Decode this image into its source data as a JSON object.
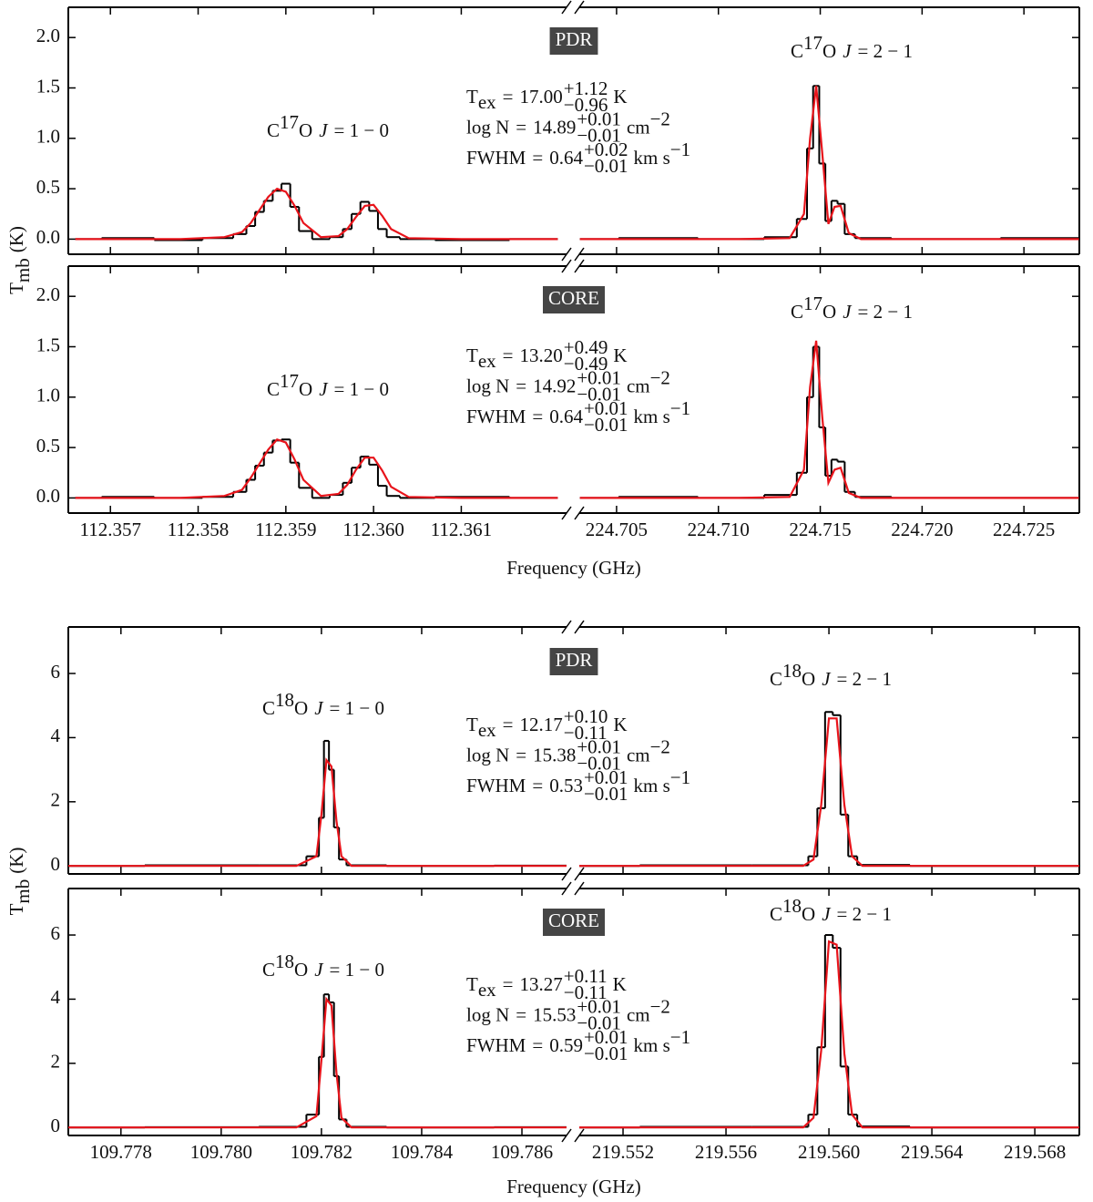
{
  "chart_data": [
    {
      "type": "line",
      "ylabel": {
        "text": "T",
        "sub": "mb",
        "unit": "(K)"
      },
      "xlabel": "Frequency (GHz)",
      "ylim": [
        -0.15,
        2.3
      ],
      "yticks": [
        {
          "value": 0,
          "label": "0.0"
        },
        0.5,
        {
          "value": 1,
          "label": "1.0"
        },
        1.5,
        {
          "value": 2,
          "label": "2.0"
        }
      ],
      "axes": [
        {
          "xlim": [
            112.35652,
            112.3622
          ],
          "xticks": [
            112.357,
            112.358,
            112.359,
            {
              "value": 112.36,
              "label": "112.360"
            },
            112.361
          ],
          "x": [
            112.3566,
            112.3572,
            112.3578,
            112.3583,
            112.3585,
            112.3586,
            112.3587,
            112.3588,
            112.3589,
            112.359,
            112.3591,
            112.3592,
            112.3594,
            112.3596,
            112.3597,
            112.3598,
            112.3599,
            112.36,
            112.3601,
            112.3602,
            112.3604,
            112.361,
            112.3621
          ]
        },
        {
          "xlim": [
            224.70317,
            224.72772
          ],
          "xticks": [
            224.705,
            {
              "value": 224.71,
              "label": "224.710"
            },
            224.715,
            {
              "value": 224.72,
              "label": "224.720"
            },
            224.725
          ],
          "x": [
            224.7032,
            224.707,
            224.711,
            224.7135,
            224.7142,
            224.7145,
            224.7148,
            224.7151,
            224.7154,
            224.7157,
            224.716,
            224.7164,
            224.717,
            224.72,
            224.7277
          ]
        }
      ],
      "panels": [
        {
          "label": "PDR",
          "fit": [
            {
              "name": "T",
              "sub": "ex",
              "eq": "=",
              "value": "17.00",
              "plus": "+1.12",
              "minus": "−0.96",
              "unit": "K"
            },
            {
              "name": "log N",
              "eq": "=",
              "value": "14.89",
              "plus": "+0.01",
              "minus": "−0.01",
              "unit": "cm",
              "unit_sup": "−2"
            },
            {
              "name": "FWHM",
              "eq": "=",
              "value": "0.64",
              "plus": "+0.02",
              "minus": "−0.01",
              "unit": "km s",
              "unit_sup": "−1"
            }
          ],
          "subplots": [
            {
              "line_label": {
                "atom1": "C",
                "isotope": "17",
                "atom2": "O",
                "quantum": "J",
                "transition": "= 1 − 0"
              },
              "series": [
                {
                  "color": "#000000",
                  "drawstyle": "steps-mid",
                  "values": [
                    0,
                    0.01,
                    -0.01,
                    0.01,
                    0.05,
                    0.13,
                    0.27,
                    0.38,
                    0.48,
                    0.55,
                    0.32,
                    0.08,
                    0,
                    0.02,
                    0.1,
                    0.25,
                    0.37,
                    0.28,
                    0.1,
                    0.02,
                    0,
                    -0.01,
                    0
                  ]
                },
                {
                  "color": "#e8141b",
                  "values": [
                    0,
                    0,
                    0,
                    0.02,
                    0.07,
                    0.16,
                    0.29,
                    0.42,
                    0.5,
                    0.47,
                    0.33,
                    0.16,
                    0.02,
                    0.03,
                    0.1,
                    0.22,
                    0.33,
                    0.34,
                    0.23,
                    0.1,
                    0.01,
                    0,
                    0
                  ]
                }
              ]
            },
            {
              "line_label": {
                "atom1": "C",
                "isotope": "17",
                "atom2": "O",
                "quantum": "J",
                "transition": "= 2 − 1"
              },
              "series": [
                {
                  "color": "#000000",
                  "drawstyle": "steps-mid",
                  "values": [
                    0,
                    0.01,
                    0,
                    0.02,
                    0.2,
                    0.9,
                    1.52,
                    0.75,
                    0.18,
                    0.38,
                    0.35,
                    0.05,
                    0.01,
                    0,
                    0.01
                  ]
                },
                {
                  "color": "#e8141b",
                  "values": [
                    0,
                    0,
                    0,
                    0.01,
                    0.25,
                    1,
                    1.52,
                    0.85,
                    0.15,
                    0.32,
                    0.33,
                    0.06,
                    0,
                    0,
                    0
                  ]
                }
              ]
            }
          ]
        },
        {
          "label": "CORE",
          "fit": [
            {
              "name": "T",
              "sub": "ex",
              "eq": "=",
              "value": "13.20",
              "plus": "+0.49",
              "minus": "−0.49",
              "unit": "K"
            },
            {
              "name": "log N",
              "eq": "=",
              "value": "14.92",
              "plus": "+0.01",
              "minus": "−0.01",
              "unit": "cm",
              "unit_sup": "−2"
            },
            {
              "name": "FWHM",
              "eq": "=",
              "value": "0.64",
              "plus": "+0.01",
              "minus": "−0.01",
              "unit": "km s",
              "unit_sup": "−1"
            }
          ],
          "subplots": [
            {
              "line_label": {
                "atom1": "C",
                "isotope": "17",
                "atom2": "O",
                "quantum": "J",
                "transition": "= 1 − 0"
              },
              "series": [
                {
                  "color": "#000000",
                  "drawstyle": "steps-mid",
                  "values": [
                    0,
                    0.01,
                    0,
                    0.01,
                    0.06,
                    0.18,
                    0.32,
                    0.45,
                    0.57,
                    0.58,
                    0.35,
                    0.1,
                    0,
                    0.03,
                    0.15,
                    0.3,
                    0.41,
                    0.33,
                    0.12,
                    0.02,
                    0,
                    0.01,
                    0
                  ]
                },
                {
                  "color": "#e8141b",
                  "values": [
                    0,
                    0,
                    0,
                    0.02,
                    0.08,
                    0.2,
                    0.34,
                    0.48,
                    0.58,
                    0.55,
                    0.38,
                    0.18,
                    0.02,
                    0.04,
                    0.13,
                    0.28,
                    0.4,
                    0.4,
                    0.27,
                    0.11,
                    0.01,
                    0,
                    0
                  ]
                }
              ]
            },
            {
              "line_label": {
                "atom1": "C",
                "isotope": "17",
                "atom2": "O",
                "quantum": "J",
                "transition": "= 2 − 1"
              },
              "series": [
                {
                  "color": "#000000",
                  "drawstyle": "steps-mid",
                  "values": [
                    0,
                    0.01,
                    0,
                    0.03,
                    0.25,
                    1,
                    1.5,
                    0.7,
                    0.22,
                    0.38,
                    0.36,
                    0.06,
                    0.01,
                    0,
                    0
                  ]
                },
                {
                  "color": "#e8141b",
                  "values": [
                    0,
                    0,
                    0,
                    0.01,
                    0.28,
                    1.1,
                    1.56,
                    0.8,
                    0.15,
                    0.28,
                    0.3,
                    0.05,
                    0,
                    0,
                    0
                  ]
                }
              ]
            }
          ]
        }
      ]
    },
    {
      "type": "line",
      "ylabel": {
        "text": "T",
        "sub": "mb",
        "unit": "(K)"
      },
      "xlabel": "Frequency (GHz)",
      "ylim": [
        -0.25,
        7.45
      ],
      "yticks": [
        0,
        2,
        4,
        6
      ],
      "axes": [
        {
          "xlim": [
            109.77695,
            109.78689
          ],
          "xticks": [
            109.778,
            {
              "value": 109.78,
              "label": "109.780"
            },
            109.782,
            109.784,
            109.786
          ],
          "x": [
            109.77695,
            109.78,
            109.7815,
            109.7819,
            109.782,
            109.7821,
            109.7822,
            109.7823,
            109.7824,
            109.7826,
            109.784,
            109.78689
          ]
        },
        {
          "xlim": [
            219.5503,
            219.56973
          ],
          "xticks": [
            219.552,
            219.556,
            {
              "value": 219.56,
              "label": "219.560"
            },
            219.564,
            219.568
          ],
          "x": [
            219.5503,
            219.555,
            219.559,
            219.5594,
            219.5597,
            219.56,
            219.5603,
            219.5606,
            219.5609,
            219.5613,
            219.565,
            219.56973
          ]
        }
      ],
      "panels": [
        {
          "label": "PDR",
          "fit": [
            {
              "name": "T",
              "sub": "ex",
              "eq": "=",
              "value": "12.17",
              "plus": "+0.10",
              "minus": "−0.11",
              "unit": "K"
            },
            {
              "name": "log N",
              "eq": "=",
              "value": "15.38",
              "plus": "+0.01",
              "minus": "−0.01",
              "unit": "cm",
              "unit_sup": "−2"
            },
            {
              "name": "FWHM",
              "eq": "=",
              "value": "0.53",
              "plus": "+0.01",
              "minus": "−0.01",
              "unit": "km s",
              "unit_sup": "−1"
            }
          ],
          "subplots": [
            {
              "line_label": {
                "atom1": "C",
                "isotope": "18",
                "atom2": "O",
                "quantum": "J",
                "transition": "= 1 − 0"
              },
              "series": [
                {
                  "color": "#000000",
                  "drawstyle": "steps-mid",
                  "values": [
                    0,
                    0.02,
                    0.02,
                    0.3,
                    1.5,
                    3.9,
                    3,
                    1.2,
                    0.2,
                    0.02,
                    0,
                    0.01
                  ]
                },
                {
                  "color": "#e8141b",
                  "values": [
                    0,
                    0,
                    0,
                    0.3,
                    1.6,
                    3.3,
                    3.1,
                    1.4,
                    0.3,
                    0,
                    0,
                    0
                  ]
                }
              ]
            },
            {
              "line_label": {
                "atom1": "C",
                "isotope": "18",
                "atom2": "O",
                "quantum": "J",
                "transition": "= 2 − 1"
              },
              "series": [
                {
                  "color": "#000000",
                  "drawstyle": "steps-mid",
                  "values": [
                    0,
                    0.02,
                    0.02,
                    0.3,
                    1.8,
                    4.8,
                    4.7,
                    1.6,
                    0.3,
                    0.03,
                    0,
                    0
                  ]
                },
                {
                  "color": "#e8141b",
                  "values": [
                    0,
                    0,
                    0,
                    0.2,
                    1.9,
                    4.6,
                    4.6,
                    1.9,
                    0.3,
                    0,
                    0,
                    0
                  ]
                }
              ]
            }
          ]
        },
        {
          "label": "CORE",
          "fit": [
            {
              "name": "T",
              "sub": "ex",
              "eq": "=",
              "value": "13.27",
              "plus": "+0.11",
              "minus": "−0.11",
              "unit": "K"
            },
            {
              "name": "log N",
              "eq": "=",
              "value": "15.53",
              "plus": "+0.01",
              "minus": "−0.01",
              "unit": "cm",
              "unit_sup": "−2"
            },
            {
              "name": "FWHM",
              "eq": "=",
              "value": "0.59",
              "plus": "+0.01",
              "minus": "−0.01",
              "unit": "km s",
              "unit_sup": "−1"
            }
          ],
          "subplots": [
            {
              "line_label": {
                "atom1": "C",
                "isotope": "18",
                "atom2": "O",
                "quantum": "J",
                "transition": "= 1 − 0"
              },
              "series": [
                {
                  "color": "#000000",
                  "drawstyle": "steps-mid",
                  "values": [
                    0,
                    0.01,
                    0.02,
                    0.4,
                    2.2,
                    4.15,
                    3.9,
                    1.6,
                    0.25,
                    0.02,
                    0,
                    0.01
                  ]
                },
                {
                  "color": "#e8141b",
                  "values": [
                    0,
                    0,
                    0,
                    0.35,
                    2.1,
                    4,
                    3.8,
                    1.7,
                    0.3,
                    0,
                    0,
                    0
                  ]
                }
              ]
            },
            {
              "line_label": {
                "atom1": "C",
                "isotope": "18",
                "atom2": "O",
                "quantum": "J",
                "transition": "= 2 − 1"
              },
              "series": [
                {
                  "color": "#000000",
                  "drawstyle": "steps-mid",
                  "values": [
                    0,
                    0.02,
                    0.02,
                    0.4,
                    2.5,
                    6,
                    5.6,
                    1.9,
                    0.4,
                    0.03,
                    0,
                    0
                  ]
                },
                {
                  "color": "#e8141b",
                  "values": [
                    0,
                    0,
                    0,
                    0.3,
                    2.4,
                    5.8,
                    5.7,
                    2.3,
                    0.4,
                    0,
                    0,
                    0
                  ]
                }
              ]
            }
          ]
        }
      ]
    }
  ]
}
